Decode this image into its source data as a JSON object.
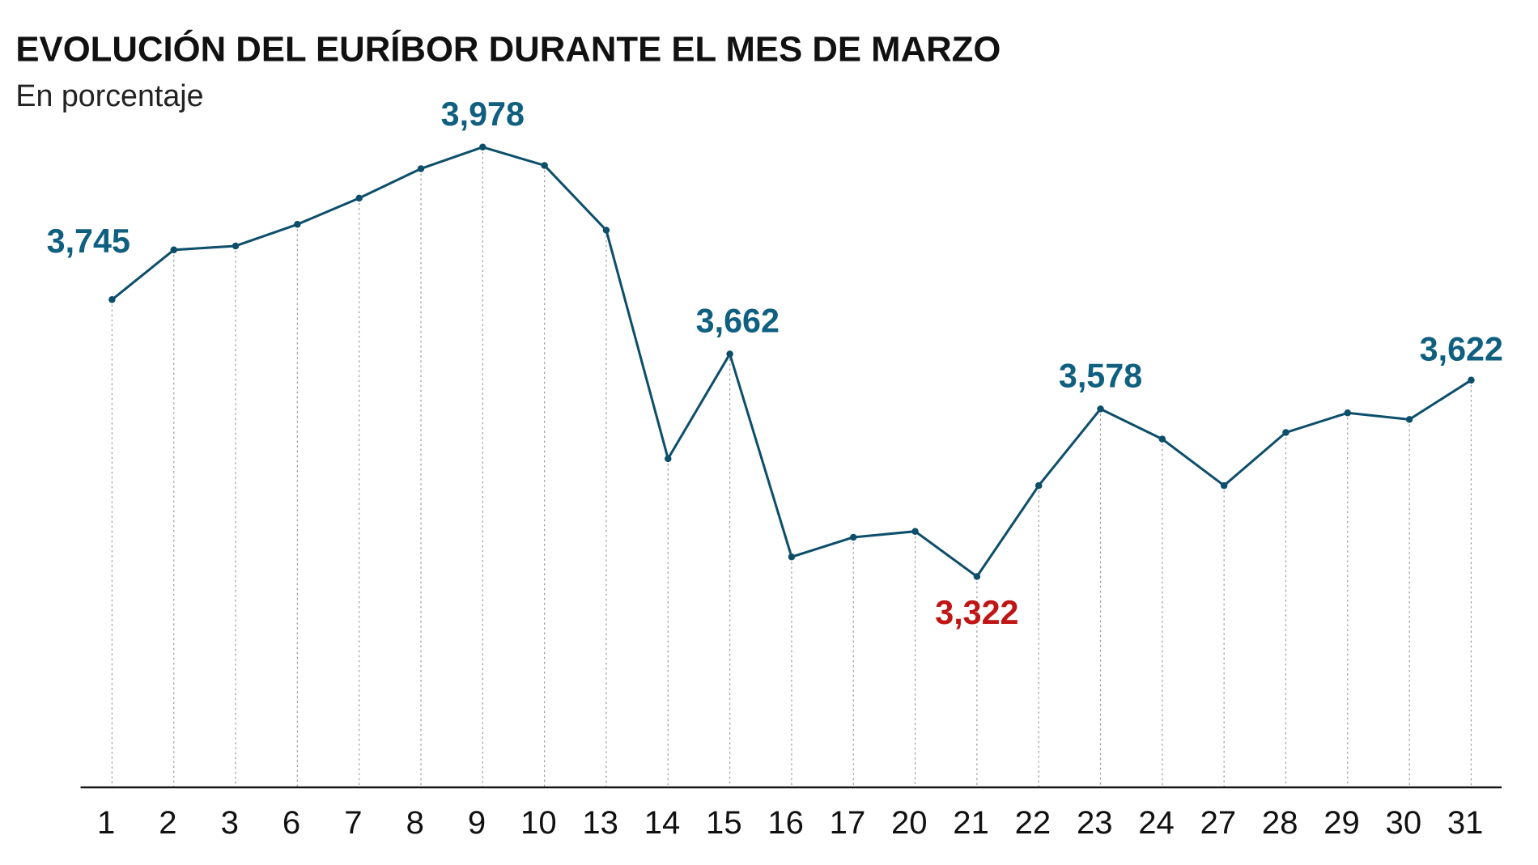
{
  "chart_data": {
    "type": "line",
    "title": "EVOLUCIÓN  DEL  EURÍBOR DURANTE EL MES DE MARZO",
    "subtitle": "En porcentaje",
    "categories": [
      "1",
      "2",
      "3",
      "6",
      "7",
      "8",
      "9",
      "10",
      "13",
      "14",
      "15",
      "16",
      "17",
      "20",
      "21",
      "22",
      "23",
      "24",
      "27",
      "28",
      "29",
      "30",
      "31"
    ],
    "values": [
      3.745,
      3.821,
      3.827,
      3.86,
      3.9,
      3.945,
      3.978,
      3.95,
      3.851,
      3.502,
      3.662,
      3.352,
      3.382,
      3.391,
      3.322,
      3.461,
      3.578,
      3.532,
      3.461,
      3.542,
      3.572,
      3.562,
      3.622
    ],
    "annotations": [
      {
        "category": "1",
        "text": "3,745",
        "color": "#0f5f80"
      },
      {
        "category": "9",
        "text": "3,978",
        "color": "#0f5f80"
      },
      {
        "category": "15",
        "text": "3,662",
        "color": "#0f5f80"
      },
      {
        "category": "21",
        "text": "3,322",
        "color": "#c01515",
        "position": "below"
      },
      {
        "category": "23",
        "text": "3,578",
        "color": "#0f5f80"
      },
      {
        "category": "31",
        "text": "3,622",
        "color": "#0f5f80"
      }
    ],
    "ylim": [
      3.0,
      4.0
    ],
    "xlabel": "",
    "ylabel": "",
    "grid": "vertical dotted lines",
    "line_color": "#0d4f6b"
  }
}
